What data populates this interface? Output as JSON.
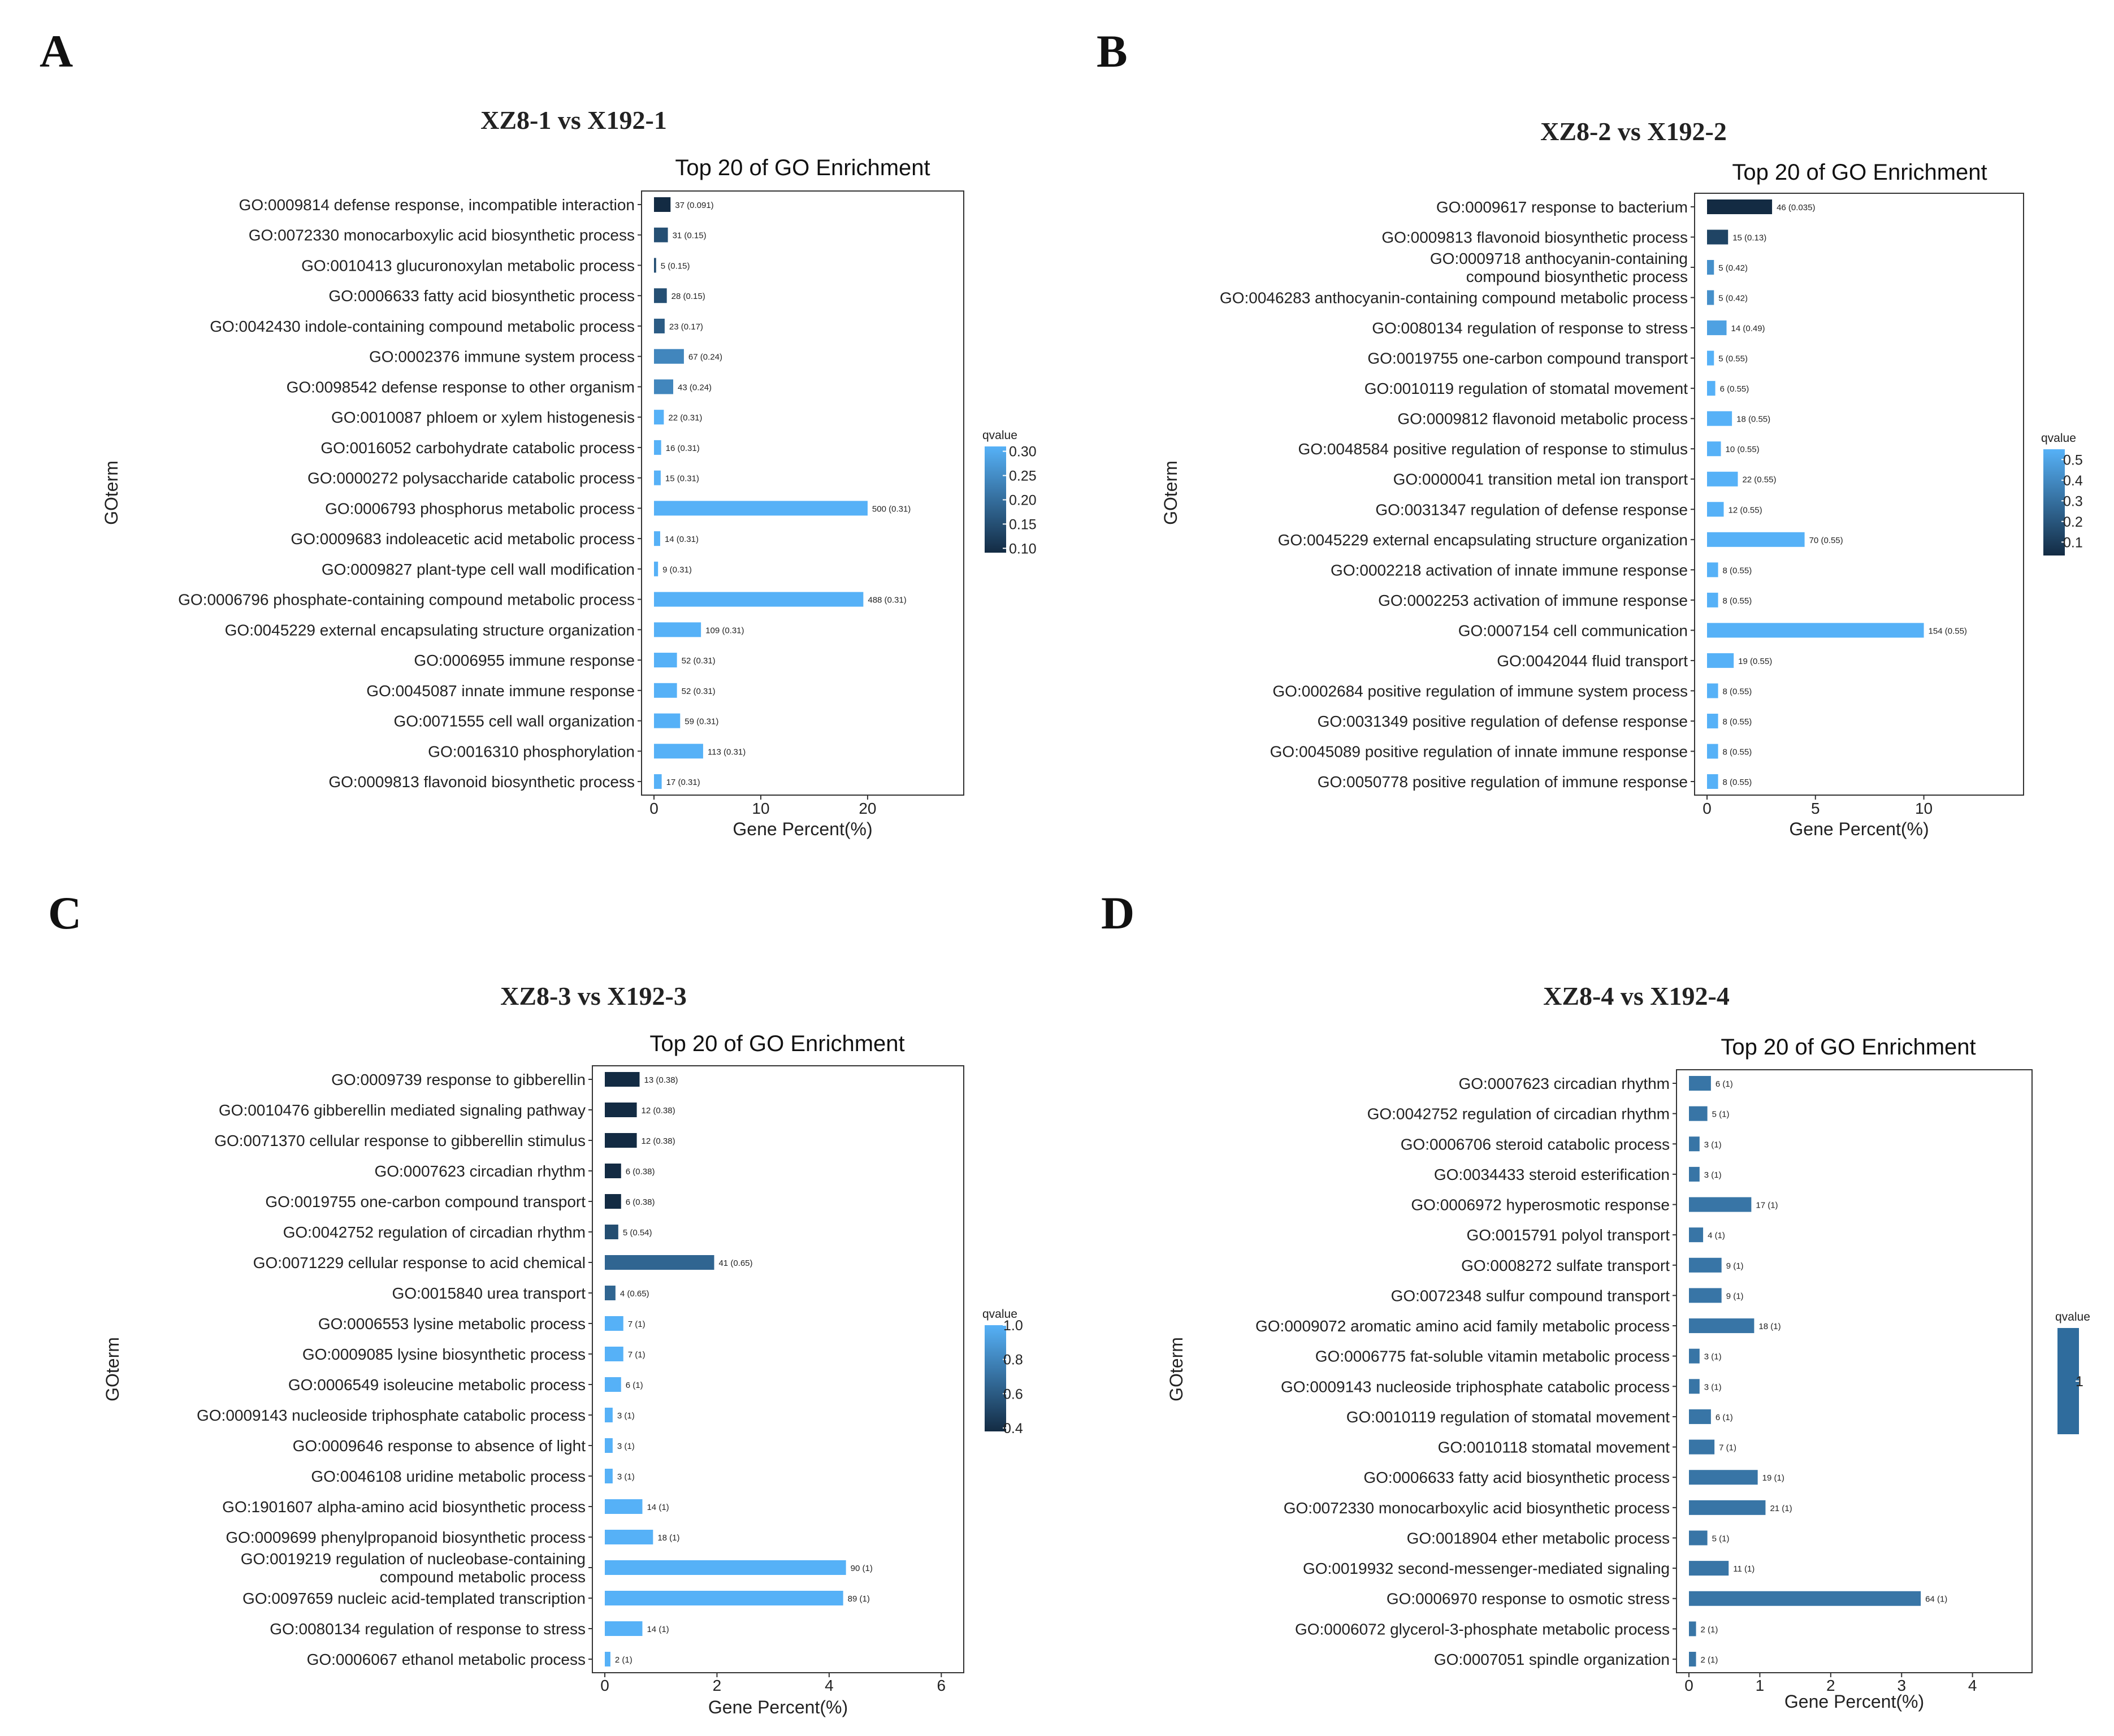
{
  "chart_data": [
    {
      "type": "bar",
      "panel": "A",
      "comparison": "XZ8-1 vs X192-1",
      "title": "Top 20 of GO Enrichment",
      "xlabel": "Gene Percent(%)",
      "ylabel": "GOterm",
      "xlim": [
        0,
        29
      ],
      "xticks": [
        0,
        10,
        20
      ],
      "legend": {
        "title": "qvalue",
        "ticks": [
          0.3,
          0.25,
          0.2,
          0.15,
          0.1
        ],
        "range": [
          0.091,
          0.31
        ],
        "placement": "right"
      },
      "categories": [
        "GO:0009814 defense response, incompatible interaction",
        "GO:0072330 monocarboxylic acid biosynthetic process",
        "GO:0010413 glucuronoxylan metabolic process",
        "GO:0006633 fatty acid biosynthetic process",
        "GO:0042430 indole-containing compound metabolic process",
        "GO:0002376 immune system process",
        "GO:0098542 defense response to other organism",
        "GO:0010087 phloem or xylem histogenesis",
        "GO:0016052 carbohydrate catabolic process",
        "GO:0000272 polysaccharide catabolic process",
        "GO:0006793 phosphorus metabolic process",
        "GO:0009683 indoleacetic acid metabolic process",
        "GO:0009827 plant-type cell wall modification",
        "GO:0006796 phosphate-containing compound metabolic process",
        "GO:0045229 external encapsulating structure organization",
        "GO:0006955 immune response",
        "GO:0045087 innate immune response",
        "GO:0071555 cell wall organization",
        "GO:0016310 phosphorylation",
        "GO:0009813 flavonoid biosynthetic process"
      ],
      "values": [
        1.55,
        1.3,
        0.2,
        1.2,
        1.0,
        2.8,
        1.8,
        0.92,
        0.67,
        0.63,
        20.0,
        0.58,
        0.38,
        19.6,
        4.4,
        2.15,
        2.15,
        2.45,
        4.6,
        0.72
      ],
      "labels": [
        "37 (0.091)",
        "31 (0.15)",
        "5 (0.15)",
        "28 (0.15)",
        "23 (0.17)",
        "67 (0.24)",
        "43 (0.24)",
        "22 (0.31)",
        "16 (0.31)",
        "15 (0.31)",
        "500 (0.31)",
        "14 (0.31)",
        "9 (0.31)",
        "488 (0.31)",
        "109 (0.31)",
        "52 (0.31)",
        "52 (0.31)",
        "59 (0.31)",
        "113 (0.31)",
        "17 (0.31)"
      ],
      "qvalues": [
        0.091,
        0.15,
        0.15,
        0.15,
        0.17,
        0.24,
        0.24,
        0.31,
        0.31,
        0.31,
        0.31,
        0.31,
        0.31,
        0.31,
        0.31,
        0.31,
        0.31,
        0.31,
        0.31,
        0.31
      ]
    },
    {
      "type": "bar",
      "panel": "B",
      "comparison": "XZ8-2 vs X192-2",
      "title": "Top 20 of GO Enrichment",
      "xlabel": "Gene Percent(%)",
      "ylabel": "GOterm",
      "xlim": [
        0,
        14.6
      ],
      "xticks": [
        0,
        5,
        10
      ],
      "legend": {
        "title": "qvalue",
        "ticks": [
          0.5,
          0.4,
          0.3,
          0.2,
          0.1
        ],
        "range": [
          0.035,
          0.55
        ],
        "placement": "right"
      },
      "categories": [
        "GO:0009617 response to bacterium",
        "GO:0009813 flavonoid biosynthetic process",
        "GO:0009718 anthocyanin-containing\ncompound biosynthetic process",
        "GO:0046283 anthocyanin-containing compound metabolic process",
        "GO:0080134 regulation of response to stress",
        "GO:0019755 one-carbon compound transport",
        "GO:0010119 regulation of stomatal movement",
        "GO:0009812 flavonoid metabolic process",
        "GO:0048584 positive regulation of response to stimulus",
        "GO:0000041 transition metal ion transport",
        "GO:0031347 regulation of defense response",
        "GO:0045229 external encapsulating structure organization",
        "GO:0002218 activation of innate immune response",
        "GO:0002253 activation of immune response",
        "GO:0007154 cell communication",
        "GO:0042044 fluid transport",
        "GO:0002684 positive regulation of immune system process",
        "GO:0031349 positive regulation of defense response",
        "GO:0045089 positive regulation of innate immune response",
        "GO:0050778 positive regulation of immune response"
      ],
      "values": [
        3.0,
        0.97,
        0.32,
        0.32,
        0.9,
        0.32,
        0.38,
        1.15,
        0.64,
        1.42,
        0.77,
        4.5,
        0.51,
        0.51,
        10.0,
        1.23,
        0.51,
        0.51,
        0.51,
        0.51
      ],
      "labels": [
        "46 (0.035)",
        "15 (0.13)",
        "5 (0.42)",
        "5 (0.42)",
        "14 (0.49)",
        "5 (0.55)",
        "6 (0.55)",
        "18 (0.55)",
        "10 (0.55)",
        "22 (0.55)",
        "12 (0.55)",
        "70 (0.55)",
        "8 (0.55)",
        "8 (0.55)",
        "154 (0.55)",
        "19 (0.55)",
        "8 (0.55)",
        "8 (0.55)",
        "8 (0.55)",
        "8 (0.55)"
      ],
      "qvalues": [
        0.035,
        0.13,
        0.42,
        0.42,
        0.49,
        0.55,
        0.55,
        0.55,
        0.55,
        0.55,
        0.55,
        0.55,
        0.55,
        0.55,
        0.55,
        0.55,
        0.55,
        0.55,
        0.55,
        0.55
      ]
    },
    {
      "type": "bar",
      "panel": "C",
      "comparison": "XZ8-3 vs X192-3",
      "title": "Top 20 of GO Enrichment",
      "xlabel": "Gene Percent(%)",
      "ylabel": "GOterm",
      "xlim": [
        0,
        6.4
      ],
      "xticks": [
        0,
        2,
        4,
        6
      ],
      "legend": {
        "title": "qvalue",
        "ticks": [
          1.0,
          0.8,
          0.6,
          0.4
        ],
        "range": [
          0.38,
          1.0
        ],
        "placement": "right"
      },
      "categories": [
        "GO:0009739 response to gibberellin",
        "GO:0010476 gibberellin mediated signaling pathway",
        "GO:0071370 cellular response to gibberellin stimulus",
        "GO:0007623 circadian rhythm",
        "GO:0019755 one-carbon compound transport",
        "GO:0042752 regulation of circadian rhythm",
        "GO:0071229 cellular response to acid chemical",
        "GO:0015840 urea transport",
        "GO:0006553 lysine metabolic process",
        "GO:0009085 lysine biosynthetic process",
        "GO:0006549 isoleucine metabolic process",
        "GO:0009143 nucleoside triphosphate catabolic process",
        "GO:0009646 response to absence of light",
        "GO:0046108 uridine metabolic process",
        "GO:1901607 alpha-amino acid biosynthetic process",
        "GO:0009699 phenylpropanoid biosynthetic process",
        "GO:0019219 regulation of nucleobase-containing\ncompound metabolic process",
        "GO:0097659 nucleic acid-templated transcription",
        "GO:0080134 regulation of response to stress",
        "GO:0006067 ethanol metabolic process"
      ],
      "values": [
        0.62,
        0.57,
        0.57,
        0.29,
        0.29,
        0.24,
        1.95,
        0.19,
        0.33,
        0.33,
        0.29,
        0.14,
        0.14,
        0.14,
        0.67,
        0.86,
        4.3,
        4.25,
        0.67,
        0.1
      ],
      "labels": [
        "13 (0.38)",
        "12 (0.38)",
        "12 (0.38)",
        "6 (0.38)",
        "6 (0.38)",
        "5 (0.54)",
        "41 (0.65)",
        "4 (0.65)",
        "7 (1)",
        "7 (1)",
        "6 (1)",
        "3 (1)",
        "3 (1)",
        "3 (1)",
        "14 (1)",
        "18 (1)",
        "90 (1)",
        "89 (1)",
        "14 (1)",
        "2 (1)"
      ],
      "qvalues": [
        0.38,
        0.38,
        0.38,
        0.38,
        0.38,
        0.54,
        0.65,
        0.65,
        1,
        1,
        1,
        1,
        1,
        1,
        1,
        1,
        1,
        1,
        1,
        1
      ]
    },
    {
      "type": "bar",
      "panel": "D",
      "comparison": "XZ8-4 vs X192-4",
      "title": "Top 20 of GO Enrichment",
      "xlabel": "Gene Percent(%)",
      "ylabel": "GOterm",
      "xlim": [
        0,
        4.84
      ],
      "xticks": [
        0,
        1,
        2,
        3,
        4
      ],
      "legend": {
        "title": "qvalue",
        "ticks": [
          1
        ],
        "range": [
          1,
          1
        ],
        "placement": "right"
      },
      "categories": [
        "GO:0007623 circadian rhythm",
        "GO:0042752 regulation of circadian rhythm",
        "GO:0006706 steroid catabolic process",
        "GO:0034433 steroid esterification",
        "GO:0006972 hyperosmotic response",
        "GO:0015791 polyol transport",
        "GO:0008272 sulfate transport",
        "GO:0072348 sulfur compound transport",
        "GO:0009072 aromatic amino acid family metabolic process",
        "GO:0006775 fat-soluble vitamin metabolic process",
        "GO:0009143 nucleoside triphosphate catabolic process",
        "GO:0010119 regulation of stomatal movement",
        "GO:0010118 stomatal movement",
        "GO:0006633 fatty acid biosynthetic process",
        "GO:0072330 monocarboxylic acid biosynthetic process",
        "GO:0018904 ether metabolic process",
        "GO:0019932 second-messenger-mediated signaling",
        "GO:0006970 response to osmotic stress",
        "GO:0006072 glycerol-3-phosphate metabolic process",
        "GO:0007051 spindle organization"
      ],
      "values": [
        0.31,
        0.26,
        0.15,
        0.15,
        0.88,
        0.2,
        0.46,
        0.46,
        0.92,
        0.15,
        0.15,
        0.31,
        0.36,
        0.97,
        1.08,
        0.26,
        0.56,
        3.27,
        0.1,
        0.1
      ],
      "labels": [
        "6 (1)",
        "5 (1)",
        "3 (1)",
        "3 (1)",
        "17 (1)",
        "4 (1)",
        "9 (1)",
        "9 (1)",
        "18 (1)",
        "3 (1)",
        "3 (1)",
        "6 (1)",
        "7 (1)",
        "19 (1)",
        "21 (1)",
        "5 (1)",
        "11 (1)",
        "64 (1)",
        "2 (1)",
        "2 (1)"
      ],
      "qvalues": [
        1,
        1,
        1,
        1,
        1,
        1,
        1,
        1,
        1,
        1,
        1,
        1,
        1,
        1,
        1,
        1,
        1,
        1,
        1,
        1
      ]
    }
  ]
}
